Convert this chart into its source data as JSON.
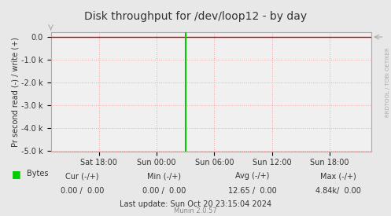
{
  "title": "Disk throughput for /dev/loop12 - by day",
  "ylabel": "Pr second read (-) / write (+)",
  "background_color": "#e8e8e8",
  "plot_bg_color": "#f0f0f0",
  "grid_color": "#ff9999",
  "border_color": "#aaaaaa",
  "ylim": [
    -5000,
    200
  ],
  "ytick_pos": [
    0,
    -1000,
    -2000,
    -3000,
    -4000,
    -5000
  ],
  "ytick_labels": [
    "0.0",
    "-1.0 k",
    "-2.0 k",
    "-3.0 k",
    "-4.0 k",
    "-5.0 k"
  ],
  "xtick_labels": [
    "Sat 18:00",
    "Sun 00:00",
    "Sun 06:00",
    "Sun 12:00",
    "Sun 18:00"
  ],
  "xtick_positions": [
    0.15,
    0.33,
    0.51,
    0.69,
    0.87
  ],
  "green_line_x": 0.42,
  "legend_label": "Bytes",
  "legend_color": "#00cc00",
  "cur_label": "Cur (-/+)",
  "cur_val": "0.00 /  0.00",
  "min_label": "Min (-/+)",
  "min_val": "0.00 /  0.00",
  "avg_label": "Avg (-/+)",
  "avg_val": "12.65 /  0.00",
  "max_label": "Max (-/+)",
  "max_val": "4.84k/  0.00",
  "last_update": "Last update: Sun Oct 20 23:15:04 2024",
  "munin_version": "Munin 2.0.57",
  "rrdtool_label": "RRDTOOL / TOBI OETIKER",
  "title_color": "#333333",
  "text_color": "#333333",
  "arrow_color": "#aaaaaa"
}
